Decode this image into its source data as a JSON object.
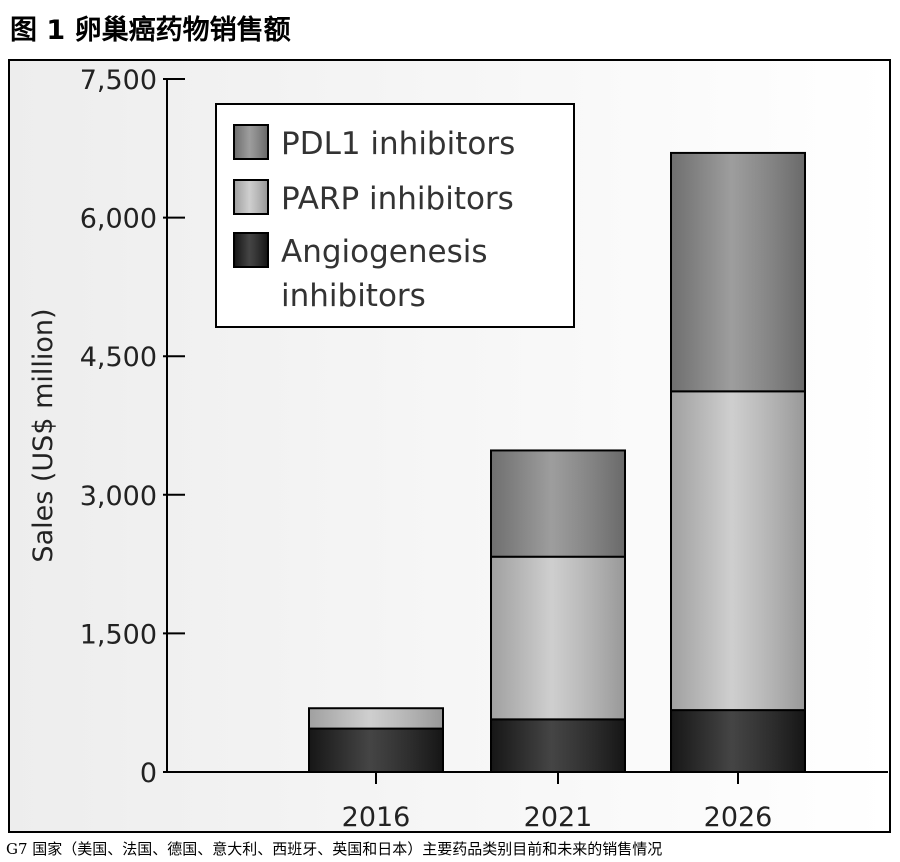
{
  "figure_title": "图 1 卵巢癌药物销售额",
  "caption": "G7 国家（美国、法国、德国、意大利、西班牙、英国和日本）主要药品类别目前和未来的销售情况",
  "chart_data": {
    "type": "bar",
    "stacked": true,
    "categories": [
      "2016",
      "2021",
      "2026"
    ],
    "series": [
      {
        "name": "Angiogenesis inhibitors",
        "values": [
          470,
          570,
          670
        ],
        "color": "#1c1c1c"
      },
      {
        "name": "PARP inhibitors",
        "values": [
          220,
          1760,
          3450
        ],
        "color": "#c4c4c4"
      },
      {
        "name": "PDL1 inhibitors",
        "values": [
          0,
          1150,
          2580
        ],
        "color": "#888888"
      }
    ],
    "legend_order": [
      {
        "lines": [
          "PDL1 inhibitors"
        ],
        "color": "#888888"
      },
      {
        "lines": [
          "PARP inhibitors"
        ],
        "color": "#c4c4c4"
      },
      {
        "lines": [
          "Angiogenesis",
          "inhibitors"
        ],
        "color": "#1c1c1c"
      }
    ],
    "ylabel": "Sales (US$ million)",
    "xlabel": "",
    "ylim": [
      0,
      7500
    ],
    "yticks": [
      0,
      1500,
      3000,
      4500,
      6000,
      7500
    ],
    "ytick_labels": [
      "0",
      "1,500",
      "3,000",
      "4,500",
      "6,000",
      "7,500"
    ],
    "legend_position": "top-left",
    "grid": false
  }
}
